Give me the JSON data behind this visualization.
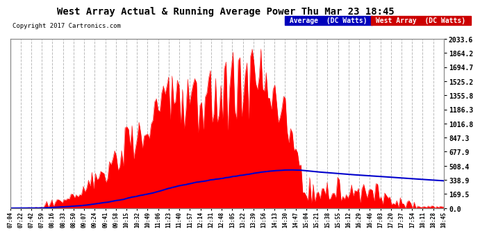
{
  "title": "West Array Actual & Running Average Power Thu Mar 23 18:45",
  "copyright": "Copyright 2017 Cartronics.com",
  "legend_labels": [
    "Average  (DC Watts)",
    "West Array  (DC Watts)"
  ],
  "yticks": [
    0.0,
    169.5,
    338.9,
    508.4,
    677.9,
    847.3,
    1016.8,
    1186.3,
    1355.8,
    1525.2,
    1694.7,
    1864.2,
    2033.6
  ],
  "ymax": 2033.6,
  "plot_bg": "#ffffff",
  "grid_color": "#bbbbbb",
  "bar_color": "#ff0000",
  "avg_color": "#0000cc",
  "outer_bg": "#ffffff",
  "title_color": "#000000",
  "xtick_labels": [
    "07:04",
    "07:22",
    "07:42",
    "07:59",
    "08:16",
    "08:33",
    "08:50",
    "09:07",
    "09:24",
    "09:41",
    "09:58",
    "10:15",
    "10:32",
    "10:49",
    "11:06",
    "11:23",
    "11:40",
    "11:57",
    "12:14",
    "12:31",
    "12:48",
    "13:05",
    "13:22",
    "13:39",
    "13:56",
    "14:13",
    "14:30",
    "14:47",
    "15:04",
    "15:21",
    "15:38",
    "15:55",
    "16:12",
    "16:29",
    "16:46",
    "17:03",
    "17:20",
    "17:37",
    "17:54",
    "18:11",
    "18:28",
    "18:45"
  ]
}
